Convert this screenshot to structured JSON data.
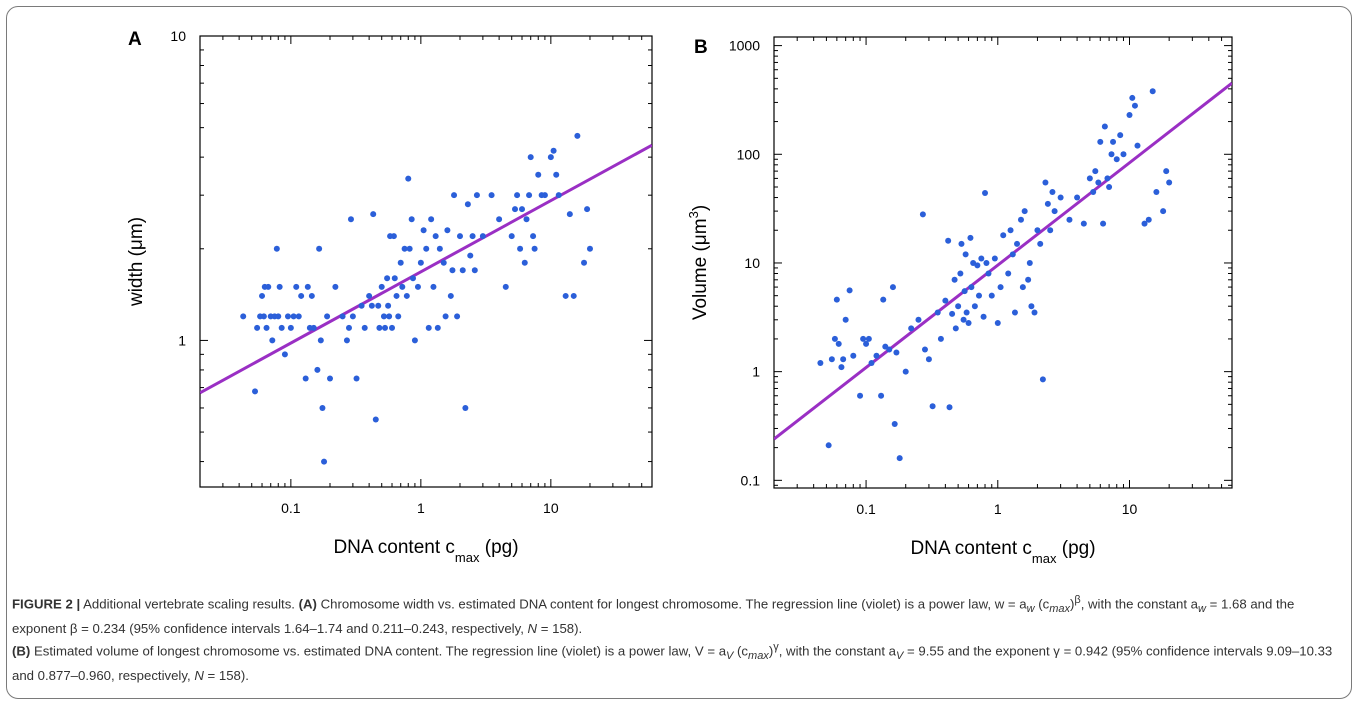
{
  "chart_data": [
    {
      "panel": "A",
      "type": "scatter",
      "title": "",
      "xscale": "log",
      "yscale": "log",
      "xlim": [
        0.02,
        60
      ],
      "ylim": [
        0.33,
        10
      ],
      "xticks": [
        0.1,
        1,
        10
      ],
      "xtick_labels": [
        "0.1",
        "1",
        "10"
      ],
      "yticks": [
        1,
        10
      ],
      "ytick_labels": [
        "1",
        "10"
      ],
      "xlabel": {
        "main": "DNA content c",
        "sub": "max",
        "tail": " (pg)"
      },
      "ylabel": {
        "main": "width (",
        "mu": "μ",
        "tail": "m)",
        "sup": ""
      },
      "grid": false,
      "point_color": "#2b5fd9",
      "line_color": "#9a2fc4",
      "fit": {
        "a": 1.68,
        "b": 0.234
      },
      "points": [
        [
          0.043,
          1.2
        ],
        [
          0.053,
          0.68
        ],
        [
          0.055,
          1.1
        ],
        [
          0.058,
          1.2
        ],
        [
          0.06,
          1.4
        ],
        [
          0.062,
          1.2
        ],
        [
          0.063,
          1.5
        ],
        [
          0.065,
          1.1
        ],
        [
          0.067,
          1.5
        ],
        [
          0.07,
          1.2
        ],
        [
          0.072,
          1.0
        ],
        [
          0.075,
          1.2
        ],
        [
          0.078,
          2.0
        ],
        [
          0.08,
          1.2
        ],
        [
          0.082,
          1.5
        ],
        [
          0.085,
          1.1
        ],
        [
          0.09,
          0.9
        ],
        [
          0.095,
          1.2
        ],
        [
          0.1,
          1.1
        ],
        [
          0.105,
          1.2
        ],
        [
          0.11,
          1.5
        ],
        [
          0.115,
          1.2
        ],
        [
          0.12,
          1.4
        ],
        [
          0.13,
          0.75
        ],
        [
          0.135,
          1.5
        ],
        [
          0.14,
          1.1
        ],
        [
          0.145,
          1.4
        ],
        [
          0.15,
          1.1
        ],
        [
          0.16,
          0.8
        ],
        [
          0.165,
          2.0
        ],
        [
          0.17,
          1.0
        ],
        [
          0.175,
          0.6
        ],
        [
          0.18,
          0.4
        ],
        [
          0.19,
          1.2
        ],
        [
          0.2,
          0.75
        ],
        [
          0.22,
          1.5
        ],
        [
          0.25,
          1.2
        ],
        [
          0.27,
          1.0
        ],
        [
          0.28,
          1.1
        ],
        [
          0.29,
          2.5
        ],
        [
          0.3,
          1.2
        ],
        [
          0.32,
          0.75
        ],
        [
          0.35,
          1.3
        ],
        [
          0.37,
          1.1
        ],
        [
          0.4,
          1.4
        ],
        [
          0.42,
          1.3
        ],
        [
          0.43,
          2.6
        ],
        [
          0.45,
          0.55
        ],
        [
          0.47,
          1.3
        ],
        [
          0.48,
          1.1
        ],
        [
          0.5,
          1.5
        ],
        [
          0.52,
          1.2
        ],
        [
          0.53,
          1.1
        ],
        [
          0.55,
          1.6
        ],
        [
          0.56,
          1.3
        ],
        [
          0.57,
          1.2
        ],
        [
          0.58,
          2.2
        ],
        [
          0.6,
          1.1
        ],
        [
          0.62,
          2.2
        ],
        [
          0.63,
          1.6
        ],
        [
          0.65,
          1.4
        ],
        [
          0.67,
          1.2
        ],
        [
          0.7,
          1.8
        ],
        [
          0.72,
          1.5
        ],
        [
          0.75,
          2.0
        ],
        [
          0.78,
          1.4
        ],
        [
          0.8,
          3.4
        ],
        [
          0.82,
          2.0
        ],
        [
          0.85,
          2.5
        ],
        [
          0.87,
          1.6
        ],
        [
          0.9,
          1.0
        ],
        [
          0.95,
          1.5
        ],
        [
          1.0,
          1.8
        ],
        [
          1.05,
          2.3
        ],
        [
          1.1,
          2.0
        ],
        [
          1.15,
          1.1
        ],
        [
          1.2,
          2.5
        ],
        [
          1.25,
          1.5
        ],
        [
          1.3,
          2.2
        ],
        [
          1.35,
          1.1
        ],
        [
          1.4,
          2.0
        ],
        [
          1.5,
          1.8
        ],
        [
          1.55,
          1.2
        ],
        [
          1.6,
          2.3
        ],
        [
          1.7,
          1.4
        ],
        [
          1.75,
          1.7
        ],
        [
          1.8,
          3.0
        ],
        [
          1.9,
          1.2
        ],
        [
          2.0,
          2.2
        ],
        [
          2.1,
          1.7
        ],
        [
          2.2,
          0.6
        ],
        [
          2.3,
          2.8
        ],
        [
          2.4,
          1.9
        ],
        [
          2.5,
          2.2
        ],
        [
          2.6,
          1.7
        ],
        [
          2.7,
          3.0
        ],
        [
          3.0,
          2.2
        ],
        [
          3.5,
          3.0
        ],
        [
          4.0,
          2.5
        ],
        [
          4.5,
          1.5
        ],
        [
          5.0,
          2.2
        ],
        [
          5.3,
          2.7
        ],
        [
          5.5,
          3.0
        ],
        [
          5.8,
          2.0
        ],
        [
          6.0,
          2.7
        ],
        [
          6.3,
          1.8
        ],
        [
          6.5,
          2.5
        ],
        [
          6.8,
          3.0
        ],
        [
          7.0,
          4.0
        ],
        [
          7.3,
          2.2
        ],
        [
          7.5,
          2.0
        ],
        [
          8.0,
          3.5
        ],
        [
          8.5,
          3.0
        ],
        [
          9.0,
          3.0
        ],
        [
          10.0,
          4.0
        ],
        [
          10.5,
          4.2
        ],
        [
          11.0,
          3.5
        ],
        [
          11.5,
          3.0
        ],
        [
          13.0,
          1.4
        ],
        [
          14.0,
          2.6
        ],
        [
          15.0,
          1.4
        ],
        [
          16.0,
          4.7
        ],
        [
          18.0,
          1.8
        ],
        [
          19.0,
          2.7
        ],
        [
          20.0,
          2.0
        ]
      ]
    },
    {
      "panel": "B",
      "type": "scatter",
      "title": "",
      "xscale": "log",
      "yscale": "log",
      "xlim": [
        0.02,
        60
      ],
      "ylim": [
        0.085,
        1200
      ],
      "xticks": [
        0.1,
        1,
        10
      ],
      "xtick_labels": [
        "0.1",
        "1",
        "10"
      ],
      "yticks": [
        0.1,
        1,
        10,
        100,
        1000
      ],
      "ytick_labels": [
        "0.1",
        "1",
        "10",
        "100",
        "1000"
      ],
      "xlabel": {
        "main": "DNA content c",
        "sub": "max",
        "tail": " (pg)"
      },
      "ylabel": {
        "main": "Volume (",
        "mu": "μ",
        "tail": "m",
        "sup": "3",
        "close": ")"
      },
      "grid": false,
      "point_color": "#2b5fd9",
      "line_color": "#9a2fc4",
      "fit": {
        "a": 9.55,
        "b": 0.942
      },
      "points": [
        [
          0.045,
          1.2
        ],
        [
          0.052,
          0.21
        ],
        [
          0.055,
          1.3
        ],
        [
          0.058,
          2.0
        ],
        [
          0.06,
          4.6
        ],
        [
          0.062,
          1.8
        ],
        [
          0.065,
          1.1
        ],
        [
          0.067,
          1.3
        ],
        [
          0.07,
          3.0
        ],
        [
          0.075,
          5.6
        ],
        [
          0.08,
          1.4
        ],
        [
          0.09,
          0.6
        ],
        [
          0.095,
          2.0
        ],
        [
          0.1,
          1.8
        ],
        [
          0.105,
          2.0
        ],
        [
          0.11,
          1.2
        ],
        [
          0.12,
          1.4
        ],
        [
          0.13,
          0.6
        ],
        [
          0.135,
          4.6
        ],
        [
          0.14,
          1.7
        ],
        [
          0.15,
          1.6
        ],
        [
          0.16,
          6.0
        ],
        [
          0.165,
          0.33
        ],
        [
          0.17,
          1.5
        ],
        [
          0.18,
          0.16
        ],
        [
          0.2,
          1.0
        ],
        [
          0.22,
          2.5
        ],
        [
          0.25,
          3.0
        ],
        [
          0.27,
          28.0
        ],
        [
          0.28,
          1.6
        ],
        [
          0.3,
          1.3
        ],
        [
          0.32,
          0.48
        ],
        [
          0.35,
          3.5
        ],
        [
          0.37,
          2.0
        ],
        [
          0.4,
          4.5
        ],
        [
          0.42,
          16.0
        ],
        [
          0.43,
          0.47
        ],
        [
          0.45,
          3.4
        ],
        [
          0.47,
          7.0
        ],
        [
          0.48,
          2.5
        ],
        [
          0.5,
          4.0
        ],
        [
          0.52,
          8.0
        ],
        [
          0.53,
          15.0
        ],
        [
          0.55,
          3.0
        ],
        [
          0.56,
          5.5
        ],
        [
          0.57,
          12.0
        ],
        [
          0.58,
          3.5
        ],
        [
          0.6,
          2.8
        ],
        [
          0.62,
          17.0
        ],
        [
          0.63,
          6.0
        ],
        [
          0.65,
          10.0
        ],
        [
          0.67,
          4.0
        ],
        [
          0.7,
          9.5
        ],
        [
          0.72,
          5.0
        ],
        [
          0.75,
          11.0
        ],
        [
          0.78,
          3.2
        ],
        [
          0.8,
          44.0
        ],
        [
          0.82,
          10.0
        ],
        [
          0.85,
          8.0
        ],
        [
          0.9,
          5.0
        ],
        [
          0.95,
          11.0
        ],
        [
          1.0,
          2.8
        ],
        [
          1.05,
          6.0
        ],
        [
          1.1,
          18.0
        ],
        [
          1.2,
          8.0
        ],
        [
          1.25,
          20.0
        ],
        [
          1.3,
          12.0
        ],
        [
          1.35,
          3.5
        ],
        [
          1.4,
          15.0
        ],
        [
          1.5,
          25.0
        ],
        [
          1.55,
          6.0
        ],
        [
          1.6,
          30.0
        ],
        [
          1.7,
          7.0
        ],
        [
          1.75,
          10.0
        ],
        [
          1.8,
          4.0
        ],
        [
          1.9,
          3.5
        ],
        [
          2.0,
          20.0
        ],
        [
          2.1,
          15.0
        ],
        [
          2.2,
          0.85
        ],
        [
          2.3,
          55.0
        ],
        [
          2.4,
          35.0
        ],
        [
          2.5,
          20.0
        ],
        [
          2.6,
          45.0
        ],
        [
          2.7,
          30.0
        ],
        [
          3.0,
          40.0
        ],
        [
          3.5,
          25.0
        ],
        [
          4.0,
          40.0
        ],
        [
          4.5,
          23.0
        ],
        [
          5.0,
          60.0
        ],
        [
          5.3,
          45.0
        ],
        [
          5.5,
          70.0
        ],
        [
          5.8,
          55.0
        ],
        [
          6.0,
          130.0
        ],
        [
          6.3,
          23.0
        ],
        [
          6.5,
          180.0
        ],
        [
          6.8,
          60.0
        ],
        [
          7.0,
          50.0
        ],
        [
          7.3,
          100.0
        ],
        [
          7.5,
          130.0
        ],
        [
          8.0,
          90.0
        ],
        [
          8.5,
          150.0
        ],
        [
          9.0,
          100.0
        ],
        [
          10.0,
          230.0
        ],
        [
          10.5,
          330.0
        ],
        [
          11.0,
          280.0
        ],
        [
          11.5,
          120.0
        ],
        [
          13.0,
          23.0
        ],
        [
          14.0,
          25.0
        ],
        [
          15.0,
          380.0
        ],
        [
          16.0,
          45.0
        ],
        [
          18.0,
          30.0
        ],
        [
          19.0,
          70.0
        ],
        [
          20.0,
          55.0
        ]
      ]
    }
  ],
  "caption": {
    "fig_label": "FIGURE 2 |",
    "fig_title": " Additional vertebrate scaling results.",
    "a_label": "(A)",
    "a_text1": " Chromosome width vs. estimated DNA content for longest chromosome. The regression line (violet) is a power law, w = a",
    "a_sub1": "w",
    "a_text2": " (c",
    "a_sub2": "max",
    "a_text3": ")",
    "a_sup": "β",
    "a_text4": ", with the constant a",
    "a_sub3": "w",
    "a_text5": " = 1.68 and the exponent β = 0.234 (95% confidence intervals 1.64–1.74 and 0.211–0.243, respectively, ",
    "a_n": "N",
    "a_text6": " = 158).",
    "b_label": "(B)",
    "b_text1": " Estimated volume of longest chromosome vs. estimated DNA content. The regression line (violet) is a power law, V = a",
    "b_sub1": "V",
    "b_text2": " (c",
    "b_sub2": "max",
    "b_text3": ")",
    "b_sup": "γ",
    "b_text4": ", with the constant a",
    "b_sub3": "V",
    "b_text5": " = 9.55 and the exponent γ = 0.942 (95% confidence intervals 9.09–10.33 and 0.877–0.960, respectively, ",
    "b_n": "N",
    "b_text6": " = 158)."
  }
}
